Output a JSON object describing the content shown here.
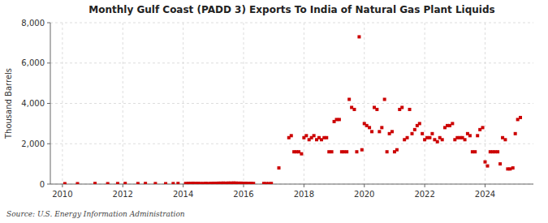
{
  "chart_data": {
    "type": "scatter",
    "title": "Monthly Gulf Coast (PADD 3) Exports To India of Natural Gas Plant Liquids",
    "ylabel": "Thousand Barrels",
    "annotations": [
      "Source: U.S. Energy Information Administration"
    ],
    "color": "#cc0000",
    "marker": "square",
    "grid": true,
    "xlim": [
      2009.6,
      2025.6
    ],
    "xticks": [
      2010,
      2012,
      2014,
      2016,
      2018,
      2020,
      2022,
      2024
    ],
    "ylim": [
      0,
      8000
    ],
    "yticks": [
      0,
      {
        "value": 2000,
        "label": "2,000"
      },
      {
        "value": 4000,
        "label": "4,000"
      },
      {
        "value": 6000,
        "label": "6,000"
      },
      {
        "value": 8000,
        "label": "8,000"
      }
    ],
    "x": [
      2010.08,
      2010.5,
      2011.08,
      2011.5,
      2011.83,
      2012.08,
      2012.5,
      2012.75,
      2013.08,
      2013.42,
      2013.67,
      2013.83,
      2014.08,
      2014.17,
      2014.25,
      2014.33,
      2014.42,
      2014.5,
      2014.58,
      2014.67,
      2014.75,
      2014.83,
      2014.92,
      2015.0,
      2015.08,
      2015.17,
      2015.25,
      2015.33,
      2015.42,
      2015.5,
      2015.58,
      2015.67,
      2015.75,
      2015.83,
      2015.92,
      2016.0,
      2016.08,
      2016.17,
      2016.25,
      2016.33,
      2016.67,
      2016.75,
      2016.83,
      2016.92,
      2017.17,
      2017.5,
      2017.58,
      2017.67,
      2017.75,
      2017.83,
      2017.92,
      2018.0,
      2018.08,
      2018.17,
      2018.25,
      2018.33,
      2018.42,
      2018.5,
      2018.58,
      2018.67,
      2018.75,
      2018.83,
      2018.92,
      2019.0,
      2019.08,
      2019.17,
      2019.25,
      2019.33,
      2019.42,
      2019.5,
      2019.58,
      2019.67,
      2019.75,
      2019.83,
      2019.92,
      2020.0,
      2020.08,
      2020.17,
      2020.25,
      2020.33,
      2020.42,
      2020.5,
      2020.58,
      2020.67,
      2020.75,
      2020.83,
      2020.92,
      2021.0,
      2021.08,
      2021.17,
      2021.25,
      2021.33,
      2021.42,
      2021.5,
      2021.58,
      2021.67,
      2021.75,
      2021.83,
      2021.92,
      2022.0,
      2022.08,
      2022.17,
      2022.25,
      2022.33,
      2022.42,
      2022.5,
      2022.58,
      2022.67,
      2022.75,
      2022.83,
      2022.92,
      2023.0,
      2023.08,
      2023.17,
      2023.25,
      2023.33,
      2023.42,
      2023.5,
      2023.58,
      2023.67,
      2023.75,
      2023.83,
      2023.92,
      2024.0,
      2024.08,
      2024.17,
      2024.25,
      2024.33,
      2024.42,
      2024.5,
      2024.58,
      2024.67,
      2024.75,
      2024.83,
      2024.92,
      2025.0,
      2025.08,
      2025.17
    ],
    "values": [
      20,
      20,
      30,
      20,
      25,
      30,
      25,
      30,
      25,
      20,
      25,
      30,
      30,
      35,
      35,
      40,
      35,
      35,
      30,
      30,
      35,
      30,
      35,
      40,
      40,
      45,
      45,
      50,
      45,
      50,
      50,
      55,
      50,
      45,
      45,
      40,
      40,
      35,
      35,
      30,
      30,
      25,
      25,
      30,
      800,
      2300,
      2400,
      1600,
      1600,
      1600,
      1500,
      2300,
      2400,
      2200,
      2300,
      2400,
      2200,
      2300,
      2200,
      2300,
      2300,
      1600,
      1600,
      3100,
      3200,
      3200,
      1600,
      1600,
      1600,
      4200,
      3800,
      3700,
      1600,
      7300,
      1700,
      3000,
      2900,
      2800,
      2600,
      3800,
      3700,
      2600,
      2800,
      4200,
      1600,
      2500,
      2600,
      1600,
      1700,
      3700,
      3800,
      2200,
      2300,
      3700,
      2500,
      2700,
      2900,
      3000,
      2500,
      2200,
      2300,
      2300,
      2500,
      2200,
      2100,
      2300,
      2200,
      2800,
      2900,
      2900,
      3000,
      2200,
      2300,
      2300,
      2300,
      2200,
      2500,
      2400,
      1600,
      1600,
      2400,
      2700,
      2800,
      1100,
      900,
      1600,
      1600,
      1600,
      1600,
      1000,
      2300,
      2200,
      750,
      750,
      800,
      2500,
      3200,
      3300
    ]
  }
}
